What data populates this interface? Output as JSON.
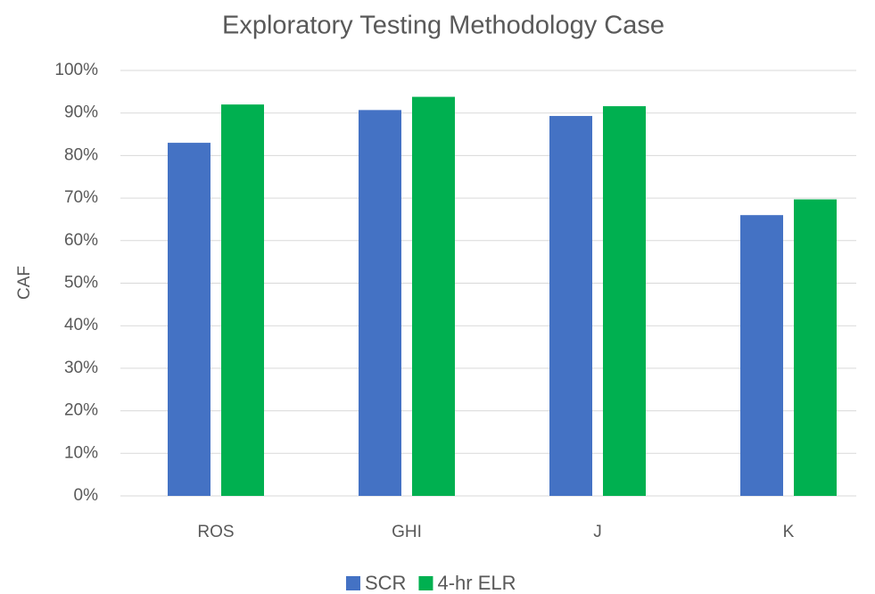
{
  "chart_data": {
    "type": "bar",
    "title": "Exploratory Testing Methodology Case",
    "y_label": "CAF",
    "categories": [
      "ROS",
      "GHI",
      "J",
      "K"
    ],
    "series": [
      {
        "name": "SCR",
        "color": "#4472c4",
        "values": [
          83,
          90.7,
          89.3,
          66
        ]
      },
      {
        "name": "4-hr ELR",
        "color": "#00b050",
        "values": [
          92,
          93.8,
          91.6,
          69.7
        ]
      }
    ],
    "ylim": [
      0,
      100
    ],
    "yticks": [
      {
        "value": 0,
        "label": "0%"
      },
      {
        "value": 10,
        "label": "10%"
      },
      {
        "value": 20,
        "label": "20%"
      },
      {
        "value": 30,
        "label": "30%"
      },
      {
        "value": 40,
        "label": "40%"
      },
      {
        "value": 50,
        "label": "50%"
      },
      {
        "value": 60,
        "label": "60%"
      },
      {
        "value": 70,
        "label": "70%"
      },
      {
        "value": 80,
        "label": "80%"
      },
      {
        "value": 90,
        "label": "90%"
      },
      {
        "value": 100,
        "label": "100%"
      }
    ],
    "grid": true,
    "legend": "bottom"
  }
}
